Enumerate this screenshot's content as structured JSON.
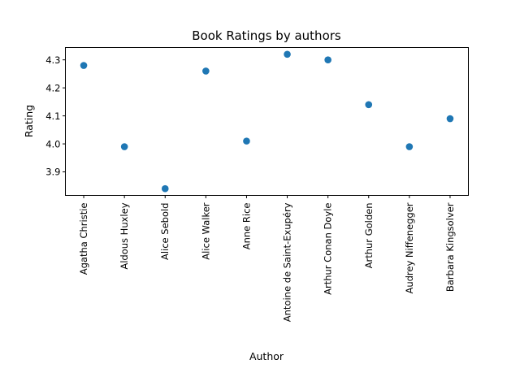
{
  "chart_data": {
    "type": "scatter",
    "title": "Book Ratings by authors",
    "xlabel": "Author",
    "ylabel": "Rating",
    "categories": [
      "Agatha Christie",
      "Aldous Huxley",
      "Alice Sebold",
      "Alice Walker",
      "Anne Rice",
      "Antoine de Saint-Exupéry",
      "Arthur Conan Doyle",
      "Arthur Golden",
      "Audrey Niffenegger",
      "Barbara Kingsolver"
    ],
    "values": [
      4.28,
      3.99,
      3.84,
      4.26,
      4.01,
      4.32,
      4.3,
      4.14,
      3.99,
      4.09
    ],
    "ylim": [
      3.816,
      4.344
    ],
    "yticks": [
      3.9,
      4.0,
      4.1,
      4.2,
      4.3
    ],
    "ytick_labels": [
      "3.9",
      "4.0",
      "4.1",
      "4.2",
      "4.3"
    ],
    "grid": false,
    "marker_color": "#1f77b4"
  }
}
